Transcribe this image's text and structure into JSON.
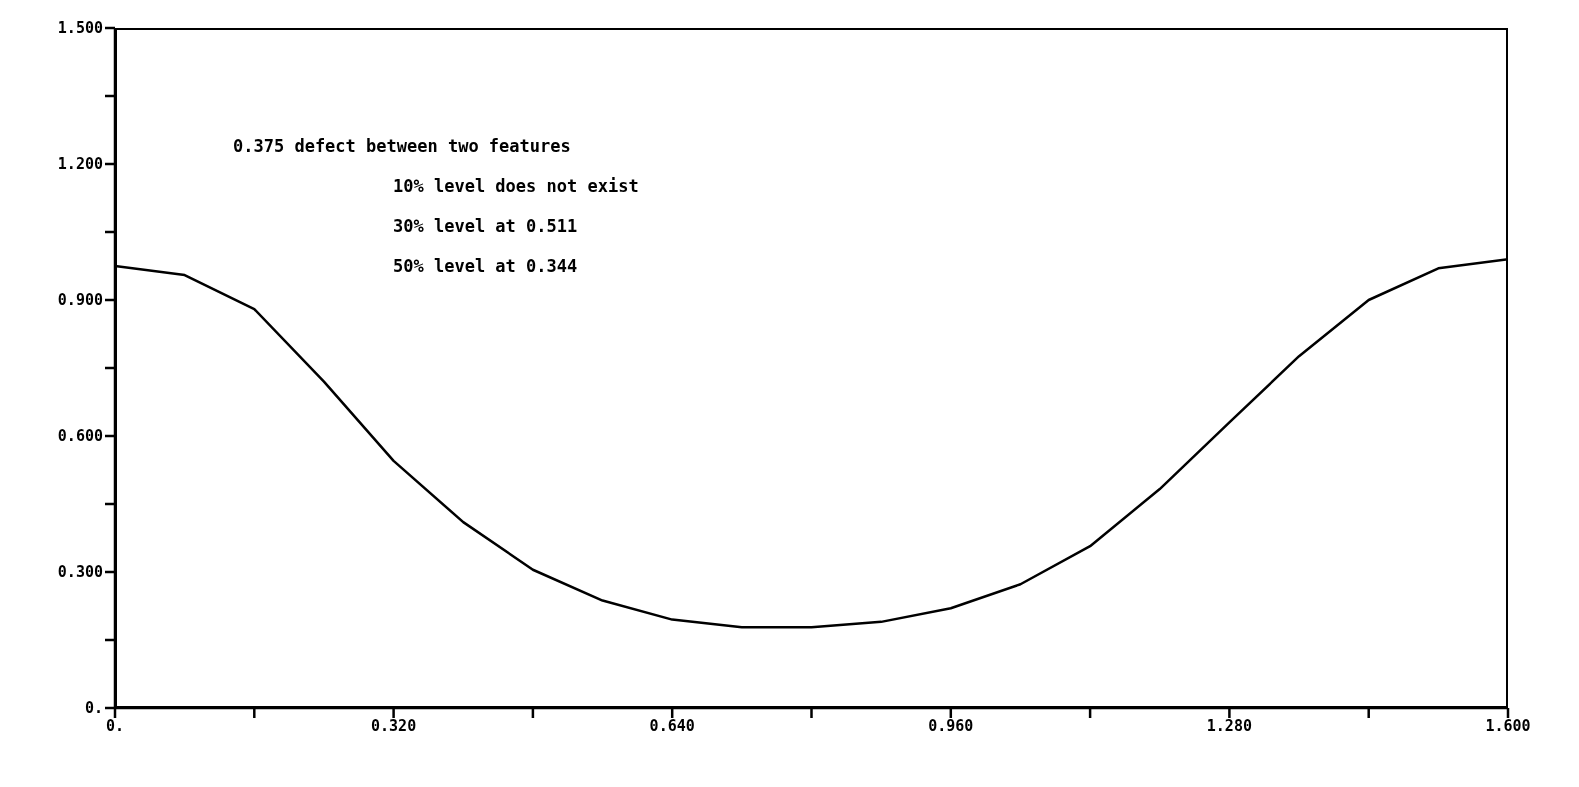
{
  "chart_data": {
    "type": "line",
    "x": [
      0,
      0.08,
      0.16,
      0.24,
      0.32,
      0.4,
      0.48,
      0.56,
      0.64,
      0.72,
      0.8,
      0.88,
      0.96,
      1.04,
      1.12,
      1.2,
      1.28,
      1.36,
      1.44,
      1.52,
      1.6
    ],
    "series": [
      {
        "color": "#000000",
        "values": [
          0.975,
          0.955,
          0.88,
          0.72,
          0.545,
          0.41,
          0.305,
          0.237,
          0.195,
          0.178,
          0.178,
          0.19,
          0.22,
          0.273,
          0.357,
          0.483,
          0.63,
          0.776,
          0.9,
          0.97,
          0.99
        ]
      }
    ],
    "xlim": [
      0,
      1.6
    ],
    "ylim": [
      0,
      1.5
    ],
    "xticks": [
      {
        "value": 0,
        "label": "0."
      },
      {
        "value": 0.16,
        "label": null
      },
      {
        "value": 0.32,
        "label": "0.320"
      },
      {
        "value": 0.48,
        "label": null
      },
      {
        "value": 0.64,
        "label": "0.640"
      },
      {
        "value": 0.8,
        "label": null
      },
      {
        "value": 0.96,
        "label": "0.960"
      },
      {
        "value": 1.12,
        "label": null
      },
      {
        "value": 1.28,
        "label": "1.280"
      },
      {
        "value": 1.44,
        "label": null
      },
      {
        "value": 1.6,
        "label": "1.600"
      }
    ],
    "yticks": [
      {
        "value": 0,
        "label": "0."
      },
      {
        "value": 0.15,
        "label": null
      },
      {
        "value": 0.3,
        "label": "0.300"
      },
      {
        "value": 0.45,
        "label": null
      },
      {
        "value": 0.6,
        "label": "0.600"
      },
      {
        "value": 0.75,
        "label": null
      },
      {
        "value": 0.9,
        "label": "0.900"
      },
      {
        "value": 1.05,
        "label": null
      },
      {
        "value": 1.2,
        "label": "1.200"
      },
      {
        "value": 1.35,
        "label": null
      },
      {
        "value": 1.5,
        "label": "1.500"
      }
    ],
    "annotations": [
      "0.375 defect between two features",
      "10% level does not exist",
      "30% level at 0.511",
      "50% level at 0.344"
    ],
    "grid": false,
    "legend": false,
    "marker": "none",
    "line_style": "solid"
  }
}
